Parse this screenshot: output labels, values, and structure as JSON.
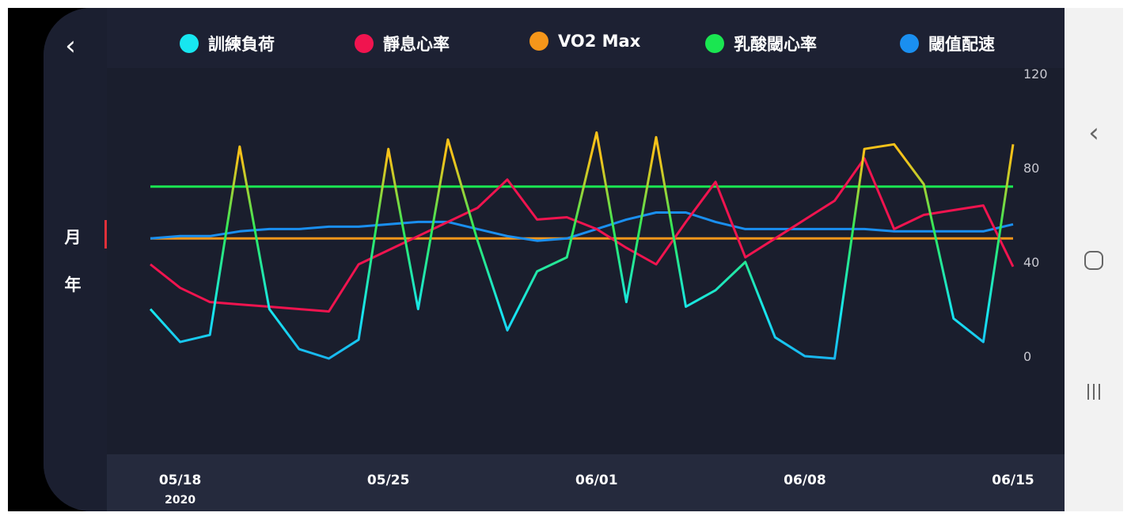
{
  "header": {
    "back_icon": "chevron-left-icon"
  },
  "period_tabs": [
    {
      "label": "月",
      "selected": true
    },
    {
      "label": "年",
      "selected": false
    }
  ],
  "colors": {
    "background": "#1d2133",
    "plot_background": "#1a1e2d",
    "axis_band": "#252a3d",
    "selected_indicator": "#e0303a"
  },
  "chart_data": {
    "type": "line",
    "legend": [
      {
        "name": "訓練負荷",
        "color": "#17e6f0"
      },
      {
        "name": "靜息心率",
        "color": "#f0144f"
      },
      {
        "name": "VO2 Max",
        "color": "#f5961a"
      },
      {
        "name": "乳酸閾心率",
        "color": "#1ae651"
      },
      {
        "name": "閾值配速",
        "color": "#1a8ff0"
      }
    ],
    "x": [
      "05/17",
      "05/18",
      "05/19",
      "05/20",
      "05/21",
      "05/22",
      "05/23",
      "05/24",
      "05/25",
      "05/26",
      "05/27",
      "05/28",
      "05/29",
      "05/30",
      "05/31",
      "06/01",
      "06/02",
      "06/03",
      "06/04",
      "06/05",
      "06/06",
      "06/07",
      "06/08",
      "06/09",
      "06/10",
      "06/11",
      "06/12",
      "06/13",
      "06/14",
      "06/15"
    ],
    "x_tick_labels": [
      {
        "x": "05/18",
        "label": "05/18",
        "sublabel": "2020"
      },
      {
        "x": "05/25",
        "label": "05/25",
        "sublabel": ""
      },
      {
        "x": "06/01",
        "label": "06/01",
        "sublabel": ""
      },
      {
        "x": "06/08",
        "label": "06/08",
        "sublabel": ""
      },
      {
        "x": "06/15",
        "label": "06/15",
        "sublabel": ""
      }
    ],
    "y_ticks": [
      0,
      40,
      80,
      120
    ],
    "ylim": [
      0,
      120
    ],
    "grid": false,
    "legend_position": "top",
    "series": [
      {
        "name": "訓練負荷",
        "values": [
          20,
          6,
          9,
          89,
          20,
          3,
          -1,
          7,
          88,
          20,
          92,
          49,
          11,
          36,
          42,
          95,
          23,
          93,
          21,
          28,
          40,
          8,
          0,
          -1,
          88,
          90,
          73,
          16,
          6,
          90
        ],
        "gradient": true
      },
      {
        "name": "靜息心率",
        "values": [
          39,
          29,
          23,
          22,
          21,
          20,
          19,
          39,
          45,
          51,
          57,
          63,
          75,
          58,
          59,
          54,
          46,
          39,
          57,
          74,
          42,
          50,
          58,
          66,
          84,
          54,
          60,
          62,
          64,
          38
        ]
      },
      {
        "name": "VO2 Max",
        "values": [
          50,
          50,
          50,
          50,
          50,
          50,
          50,
          50,
          50,
          50,
          50,
          50,
          50,
          50,
          50,
          50,
          50,
          50,
          50,
          50,
          50,
          50,
          50,
          50,
          50,
          50,
          50,
          50,
          50,
          50
        ]
      },
      {
        "name": "乳酸閾心率",
        "values": [
          72,
          72,
          72,
          72,
          72,
          72,
          72,
          72,
          72,
          72,
          72,
          72,
          72,
          72,
          72,
          72,
          72,
          72,
          72,
          72,
          72,
          72,
          72,
          72,
          72,
          72,
          72,
          72,
          72,
          72
        ]
      },
      {
        "name": "閾值配速",
        "values": [
          50,
          51,
          51,
          53,
          54,
          54,
          55,
          55,
          56,
          57,
          57,
          54,
          51,
          49,
          50,
          54,
          58,
          61,
          61,
          57,
          54,
          54,
          54,
          54,
          54,
          53,
          53,
          53,
          53,
          56
        ]
      }
    ]
  },
  "nav_bar": {
    "back_icon": "nav-back-icon",
    "home_icon": "nav-home-icon",
    "recents_icon": "nav-recents-icon"
  }
}
